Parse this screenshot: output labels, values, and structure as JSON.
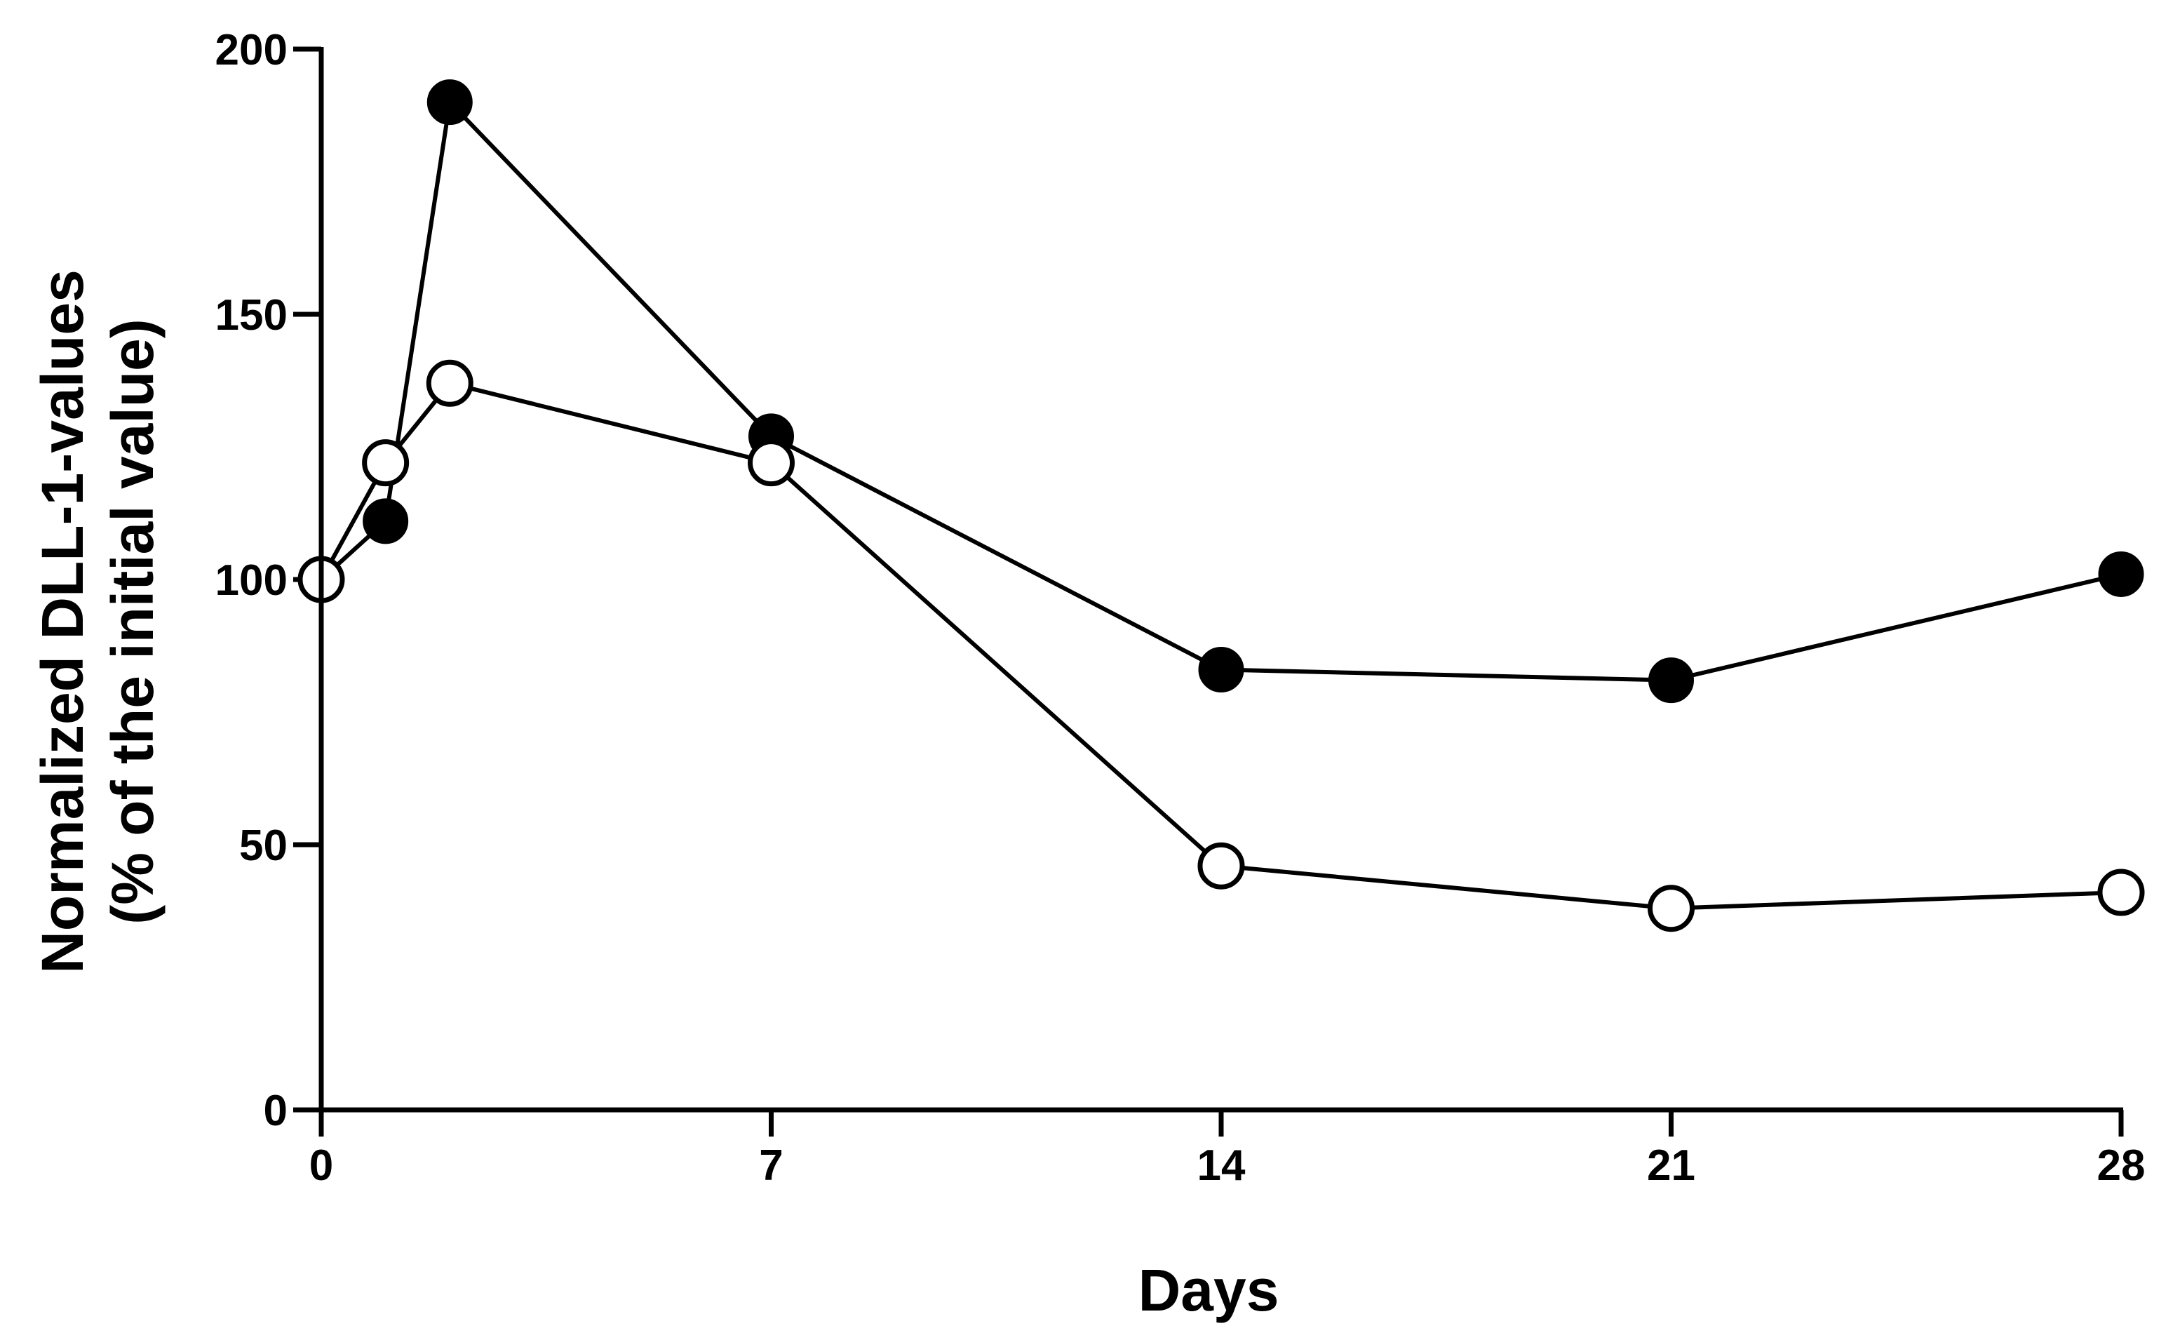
{
  "chart_data": {
    "type": "line",
    "title": "",
    "xlabel": "Days",
    "ylabel_line1": "Normalized DLL-1-values",
    "ylabel_line2": "(% of the initial value)",
    "xlim": [
      0,
      28
    ],
    "ylim": [
      0,
      200
    ],
    "x_ticks": [
      0,
      7,
      14,
      21,
      28
    ],
    "y_ticks": [
      0,
      50,
      100,
      150,
      200
    ],
    "grid": false,
    "legend": "none",
    "series": [
      {
        "marker": "filled-circle",
        "color": "#000000",
        "x": [
          0,
          1,
          2,
          7,
          14,
          21,
          28
        ],
        "y": [
          100,
          111,
          190,
          127,
          83,
          81,
          101
        ]
      },
      {
        "marker": "open-circle",
        "color": "#000000",
        "x": [
          0,
          1,
          2,
          7,
          14,
          21,
          28
        ],
        "y": [
          100,
          122,
          137,
          122,
          46,
          38,
          41
        ]
      }
    ]
  }
}
